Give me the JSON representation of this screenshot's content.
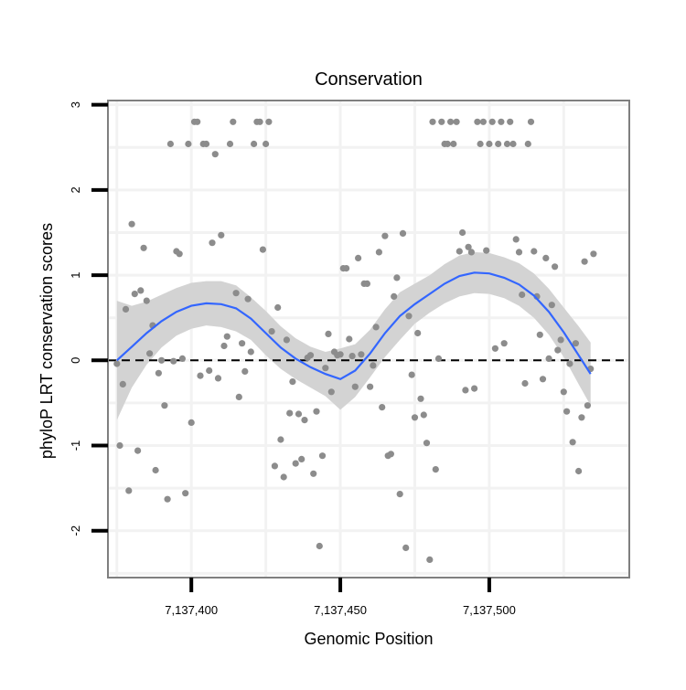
{
  "chart_data": {
    "type": "scatter",
    "title": "Conservation",
    "xlabel": "Genomic Position",
    "ylabel": "phyloP LRT conservation scores",
    "xlim": [
      7137372,
      7137547
    ],
    "ylim": [
      -2.55,
      3.05
    ],
    "x_ticks": [
      7137400,
      7137450,
      7137500
    ],
    "x_tick_labels": [
      "7,137,400",
      "7,137,450",
      "7,137,500"
    ],
    "y_ticks": [
      -2,
      -1,
      0,
      1,
      2,
      3
    ],
    "y_tick_labels": [
      "-2",
      "-1",
      "0",
      "1",
      "2",
      "3"
    ],
    "grid": true,
    "reference_line": 0,
    "colors": {
      "points": "#8c8c8c",
      "smooth_line": "#3366ff",
      "ribbon": "#d3d3d3",
      "grid": "#f2f2f2",
      "panel_border": "#7f7f7f",
      "reference_line": "#000000"
    },
    "points": [
      [
        7137375,
        -0.04
      ],
      [
        7137376,
        -1.0
      ],
      [
        7137377,
        -0.28
      ],
      [
        7137378,
        0.6
      ],
      [
        7137379,
        -1.53
      ],
      [
        7137380,
        1.6
      ],
      [
        7137381,
        0.78
      ],
      [
        7137382,
        -1.06
      ],
      [
        7137383,
        0.82
      ],
      [
        7137384,
        1.32
      ],
      [
        7137385,
        0.7
      ],
      [
        7137386,
        0.08
      ],
      [
        7137387,
        0.41
      ],
      [
        7137388,
        -1.29
      ],
      [
        7137389,
        -0.15
      ],
      [
        7137390,
        0.0
      ],
      [
        7137391,
        -0.53
      ],
      [
        7137392,
        -1.63
      ],
      [
        7137393,
        2.54
      ],
      [
        7137394,
        -0.01
      ],
      [
        7137395,
        1.28
      ],
      [
        7137396,
        1.25
      ],
      [
        7137397,
        0.02
      ],
      [
        7137398,
        -1.56
      ],
      [
        7137399,
        2.54
      ],
      [
        7137400,
        -0.73
      ],
      [
        7137401,
        2.8
      ],
      [
        7137402,
        2.8
      ],
      [
        7137403,
        -0.18
      ],
      [
        7137404,
        2.54
      ],
      [
        7137405,
        2.54
      ],
      [
        7137406,
        -0.12
      ],
      [
        7137407,
        1.38
      ],
      [
        7137408,
        2.42
      ],
      [
        7137409,
        -0.21
      ],
      [
        7137410,
        1.47
      ],
      [
        7137411,
        0.17
      ],
      [
        7137412,
        0.28
      ],
      [
        7137413,
        2.54
      ],
      [
        7137414,
        2.8
      ],
      [
        7137415,
        0.79
      ],
      [
        7137416,
        -0.43
      ],
      [
        7137417,
        0.2
      ],
      [
        7137418,
        -0.13
      ],
      [
        7137419,
        0.72
      ],
      [
        7137420,
        0.1
      ],
      [
        7137421,
        2.54
      ],
      [
        7137422,
        2.8
      ],
      [
        7137423,
        2.8
      ],
      [
        7137424,
        1.3
      ],
      [
        7137425,
        2.54
      ],
      [
        7137426,
        2.8
      ],
      [
        7137427,
        0.34
      ],
      [
        7137428,
        -1.24
      ],
      [
        7137429,
        0.62
      ],
      [
        7137430,
        -0.93
      ],
      [
        7137431,
        -1.37
      ],
      [
        7137432,
        0.24
      ],
      [
        7137433,
        -0.62
      ],
      [
        7137434,
        -0.25
      ],
      [
        7137435,
        -1.21
      ],
      [
        7137436,
        -0.63
      ],
      [
        7137437,
        -1.16
      ],
      [
        7137438,
        -0.7
      ],
      [
        7137439,
        0.03
      ],
      [
        7137440,
        0.06
      ],
      [
        7137441,
        -1.33
      ],
      [
        7137442,
        -0.6
      ],
      [
        7137443,
        -2.18
      ],
      [
        7137444,
        -1.12
      ],
      [
        7137445,
        -0.09
      ],
      [
        7137446,
        0.31
      ],
      [
        7137447,
        -0.37
      ],
      [
        7137448,
        0.1
      ],
      [
        7137449,
        0.06
      ],
      [
        7137450,
        0.07
      ],
      [
        7137451,
        1.08
      ],
      [
        7137452,
        1.08
      ],
      [
        7137453,
        0.25
      ],
      [
        7137454,
        0.05
      ],
      [
        7137455,
        -0.31
      ],
      [
        7137456,
        1.2
      ],
      [
        7137457,
        0.07
      ],
      [
        7137458,
        0.9
      ],
      [
        7137459,
        0.9
      ],
      [
        7137460,
        -0.31
      ],
      [
        7137461,
        -0.06
      ],
      [
        7137462,
        0.39
      ],
      [
        7137463,
        1.27
      ],
      [
        7137464,
        -0.55
      ],
      [
        7137465,
        1.46
      ],
      [
        7137466,
        -1.12
      ],
      [
        7137467,
        -1.1
      ],
      [
        7137468,
        0.75
      ],
      [
        7137469,
        0.97
      ],
      [
        7137470,
        -1.57
      ],
      [
        7137471,
        1.49
      ],
      [
        7137472,
        -2.2
      ],
      [
        7137473,
        0.52
      ],
      [
        7137474,
        -0.17
      ],
      [
        7137475,
        -0.67
      ],
      [
        7137476,
        0.32
      ],
      [
        7137477,
        -0.45
      ],
      [
        7137478,
        -0.64
      ],
      [
        7137479,
        -0.97
      ],
      [
        7137480,
        -2.34
      ],
      [
        7137481,
        2.8
      ],
      [
        7137482,
        -1.28
      ],
      [
        7137483,
        0.02
      ],
      [
        7137484,
        2.8
      ],
      [
        7137485,
        2.54
      ],
      [
        7137486,
        2.54
      ],
      [
        7137487,
        2.8
      ],
      [
        7137488,
        2.54
      ],
      [
        7137489,
        2.8
      ],
      [
        7137490,
        1.28
      ],
      [
        7137491,
        1.5
      ],
      [
        7137492,
        -0.35
      ],
      [
        7137493,
        1.33
      ],
      [
        7137494,
        1.27
      ],
      [
        7137495,
        -0.33
      ],
      [
        7137496,
        2.8
      ],
      [
        7137497,
        2.54
      ],
      [
        7137498,
        2.8
      ],
      [
        7137499,
        1.29
      ],
      [
        7137500,
        2.54
      ],
      [
        7137501,
        2.8
      ],
      [
        7137502,
        0.14
      ],
      [
        7137503,
        2.54
      ],
      [
        7137504,
        2.8
      ],
      [
        7137505,
        0.2
      ],
      [
        7137506,
        2.54
      ],
      [
        7137507,
        2.8
      ],
      [
        7137508,
        2.54
      ],
      [
        7137509,
        1.42
      ],
      [
        7137510,
        1.27
      ],
      [
        7137511,
        0.77
      ],
      [
        7137512,
        -0.27
      ],
      [
        7137513,
        2.54
      ],
      [
        7137514,
        2.8
      ],
      [
        7137515,
        1.28
      ],
      [
        7137516,
        0.75
      ],
      [
        7137517,
        0.3
      ],
      [
        7137518,
        -0.22
      ],
      [
        7137519,
        1.2
      ],
      [
        7137520,
        0.02
      ],
      [
        7137521,
        0.65
      ],
      [
        7137522,
        1.1
      ],
      [
        7137523,
        0.12
      ],
      [
        7137524,
        0.24
      ],
      [
        7137525,
        -0.37
      ],
      [
        7137526,
        -0.6
      ],
      [
        7137527,
        -0.04
      ],
      [
        7137528,
        -0.96
      ],
      [
        7137529,
        0.2
      ],
      [
        7137530,
        -1.3
      ],
      [
        7137531,
        -0.67
      ],
      [
        7137532,
        1.16
      ],
      [
        7137533,
        -0.53
      ],
      [
        7137534,
        -0.1
      ],
      [
        7137535,
        1.25
      ]
    ],
    "smooth": {
      "x": [
        7137375,
        7137380,
        7137385,
        7137390,
        7137395,
        7137400,
        7137405,
        7137410,
        7137415,
        7137420,
        7137425,
        7137430,
        7137435,
        7137440,
        7137445,
        7137450,
        7137455,
        7137460,
        7137465,
        7137470,
        7137475,
        7137480,
        7137485,
        7137490,
        7137495,
        7137500,
        7137505,
        7137510,
        7137515,
        7137520,
        7137525,
        7137530,
        7137534
      ],
      "y": [
        0.0,
        0.16,
        0.32,
        0.46,
        0.57,
        0.64,
        0.67,
        0.66,
        0.61,
        0.49,
        0.32,
        0.15,
        0.02,
        -0.08,
        -0.16,
        -0.22,
        -0.12,
        0.08,
        0.32,
        0.52,
        0.66,
        0.78,
        0.9,
        0.99,
        1.03,
        1.02,
        0.97,
        0.89,
        0.76,
        0.57,
        0.33,
        0.06,
        -0.16
      ],
      "lo": [
        -0.7,
        -0.32,
        -0.05,
        0.15,
        0.29,
        0.37,
        0.41,
        0.39,
        0.34,
        0.24,
        0.06,
        -0.1,
        -0.22,
        -0.32,
        -0.42,
        -0.58,
        -0.43,
        -0.2,
        0.04,
        0.24,
        0.43,
        0.56,
        0.67,
        0.75,
        0.79,
        0.78,
        0.73,
        0.64,
        0.5,
        0.3,
        0.04,
        -0.28,
        -0.53
      ],
      "hi": [
        0.7,
        0.64,
        0.69,
        0.77,
        0.85,
        0.91,
        0.93,
        0.93,
        0.88,
        0.74,
        0.58,
        0.4,
        0.26,
        0.16,
        0.1,
        0.14,
        0.19,
        0.36,
        0.6,
        0.8,
        0.9,
        1.0,
        1.13,
        1.23,
        1.27,
        1.26,
        1.21,
        1.14,
        1.02,
        0.84,
        0.62,
        0.4,
        0.21
      ]
    }
  }
}
